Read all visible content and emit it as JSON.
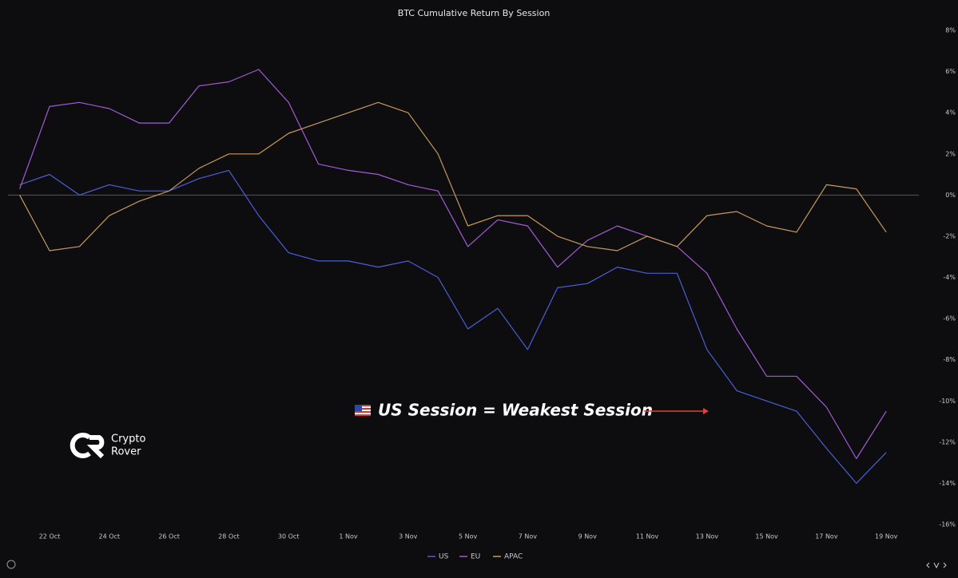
{
  "chart_data": {
    "type": "line",
    "title": "BTC Cumulative Return By Session",
    "categories": [
      null,
      "22 Oct",
      null,
      "24 Oct",
      null,
      "26 Oct",
      null,
      "28 Oct",
      null,
      "30 Oct",
      null,
      "1 Nov",
      null,
      "3 Nov",
      null,
      "5 Nov",
      null,
      "7 Nov",
      null,
      "9 Nov",
      null,
      "11 Nov",
      null,
      "13 Nov",
      null,
      "15 Nov",
      null,
      "17 Nov",
      null,
      "19 Nov"
    ],
    "series": [
      {
        "name": "US",
        "color": "#4b5fd6",
        "values": [
          0.5,
          1,
          0,
          0.5,
          0.2,
          0.2,
          0.8,
          1.2,
          -1,
          -2.8,
          -3.2,
          -3.2,
          -3.5,
          -3.2,
          -4,
          -6.5,
          -5.5,
          -7.5,
          -4.5,
          -4.3,
          -3.5,
          -3.8,
          -3.8,
          -7.5,
          -9.5,
          -10,
          -10.5,
          -12.3,
          -14,
          -12.5
        ]
      },
      {
        "name": "EU",
        "color": "#a35ad8",
        "values": [
          0.3,
          4.3,
          4.5,
          4.2,
          3.5,
          3.5,
          5.3,
          5.5,
          6.1,
          4.5,
          1.5,
          1.2,
          1,
          0.5,
          0.2,
          -2.5,
          -1.2,
          -1.5,
          -3.5,
          -2.2,
          -1.5,
          -2,
          -2.5,
          -3.8,
          -6.5,
          -8.8,
          -8.8,
          -10.3,
          -12.8,
          -10.5
        ]
      },
      {
        "name": "APAC",
        "color": "#c9995a",
        "values": [
          0,
          -2.7,
          -2.5,
          -1,
          -0.3,
          0.2,
          1.3,
          2,
          2,
          3,
          3.5,
          4,
          4.5,
          4,
          2,
          -1.5,
          -1,
          -1,
          -2,
          -2.5,
          -2.7,
          -2,
          -2.5,
          -1,
          -0.8,
          -1.5,
          -1.8,
          0.5,
          0.3,
          -1.8
        ]
      }
    ],
    "ylim": [
      -16,
      8
    ],
    "yticks": [
      {
        "value": -16,
        "label": "-16%"
      },
      {
        "value": -14,
        "label": "-14%"
      },
      {
        "value": -12,
        "label": "-12%"
      },
      {
        "value": -10,
        "label": "-10%"
      },
      {
        "value": -8,
        "label": "-8%"
      },
      {
        "value": -6,
        "label": "-6%"
      },
      {
        "value": -4,
        "label": "-4%"
      },
      {
        "value": -2,
        "label": "-2%"
      },
      {
        "value": 0,
        "label": "0%"
      },
      {
        "value": 2,
        "label": "2%"
      },
      {
        "value": 4,
        "label": "4%"
      },
      {
        "value": 6,
        "label": "6%"
      },
      {
        "value": 8,
        "label": "8%"
      }
    ],
    "zero_line": true,
    "grid": false,
    "legend": "bottom",
    "annotation": "US Session = Weakest Session",
    "watermark": [
      "Crypto",
      "Rover"
    ]
  }
}
